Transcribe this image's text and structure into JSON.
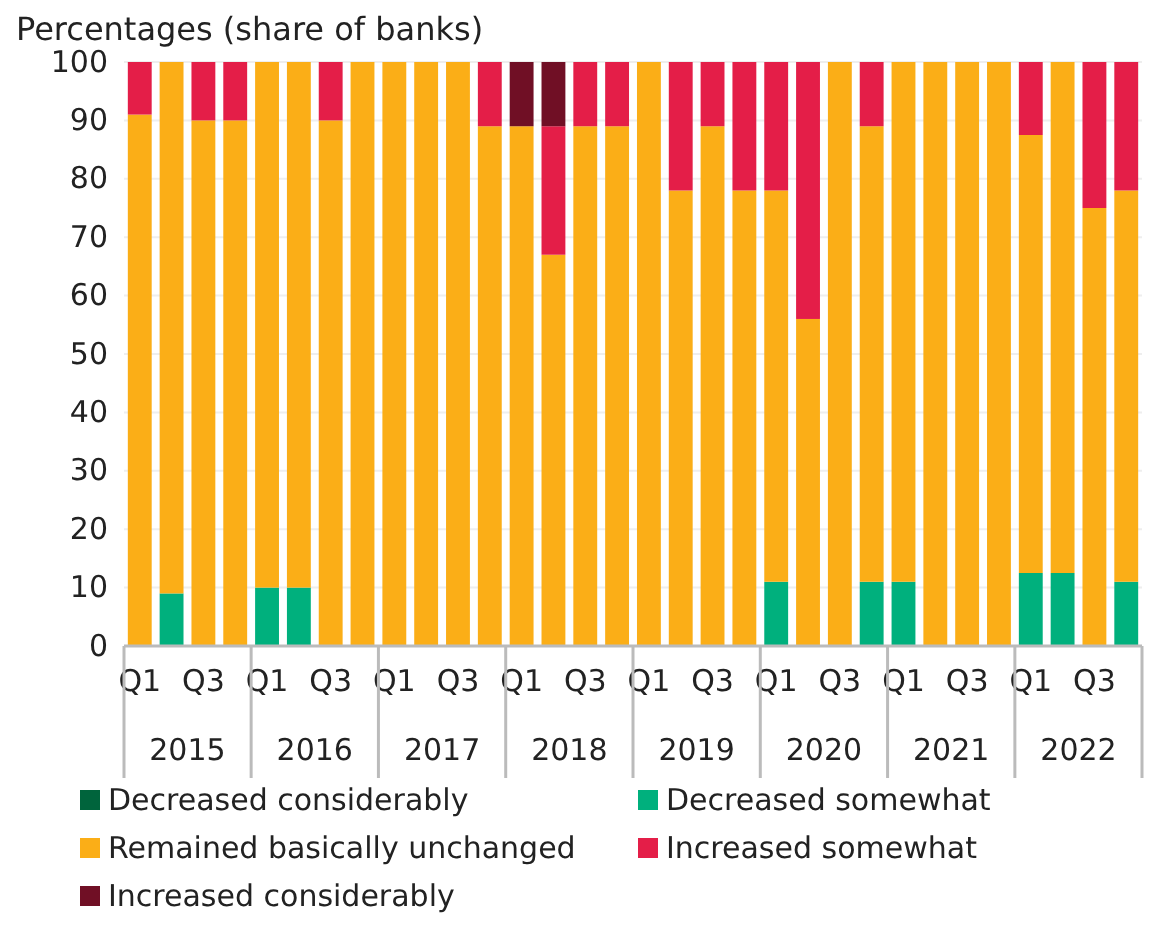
{
  "chart_data": {
    "type": "bar",
    "title": "Percentages (share of banks)",
    "stacked": true,
    "grid": "y",
    "legend": "bottom",
    "categories": [
      "Q1",
      null,
      "Q3",
      null,
      "Q1",
      null,
      "Q3",
      null,
      "Q1",
      null,
      "Q3",
      null,
      "Q1",
      null,
      "Q3",
      null,
      "Q1",
      null,
      "Q3",
      null,
      "Q1",
      null,
      "Q3",
      null,
      "Q1",
      null,
      "Q3",
      null,
      "Q1",
      null,
      "Q3",
      null
    ],
    "annotations": [
      "2015",
      "2016",
      "2017",
      "2018",
      "2019",
      "2020",
      "2021",
      "2022"
    ],
    "ylim": [
      0,
      100
    ],
    "yticks": [
      0,
      10,
      20,
      30,
      40,
      50,
      60,
      70,
      80,
      90,
      100
    ],
    "series": [
      {
        "name": "Decreased considerably",
        "color": "#00643c",
        "values": [
          0,
          0,
          0,
          0,
          0,
          0,
          0,
          0,
          0,
          0,
          0,
          0,
          0,
          0,
          0,
          0,
          0,
          0,
          0,
          0,
          0,
          0,
          0,
          0,
          0,
          0,
          0,
          0,
          0,
          0,
          0,
          0
        ]
      },
      {
        "name": "Decreased somewhat",
        "color": "#00b07d",
        "values": [
          0,
          9,
          0,
          0,
          10,
          10,
          0,
          0,
          0,
          0,
          0,
          0,
          0,
          0,
          0,
          0,
          0,
          0,
          0,
          0,
          11,
          0,
          0,
          11,
          11,
          0,
          0,
          0,
          12.5,
          12.5,
          0,
          11
        ]
      },
      {
        "name": "Remained basically unchanged",
        "color": "#fbae17",
        "values": [
          91,
          91,
          90,
          90,
          90,
          90,
          90,
          100,
          100,
          100,
          100,
          89,
          89,
          67,
          89,
          89,
          100,
          78,
          89,
          78,
          67,
          56,
          100,
          78,
          89,
          100,
          100,
          100,
          75,
          87.5,
          75,
          67
        ]
      },
      {
        "name": "Increased somewhat",
        "color": "#e41e48",
        "values": [
          9,
          0,
          10,
          10,
          0,
          0,
          10,
          0,
          0,
          0,
          0,
          11,
          0,
          22,
          11,
          11,
          0,
          22,
          11,
          22,
          22,
          44,
          0,
          11,
          0,
          0,
          0,
          0,
          12.5,
          0,
          25,
          22
        ]
      },
      {
        "name": "Increased considerably",
        "color": "#700f25",
        "values": [
          0,
          0,
          0,
          0,
          0,
          0,
          0,
          0,
          0,
          0,
          0,
          0,
          11,
          11,
          0,
          0,
          0,
          0,
          0,
          0,
          0,
          0,
          0,
          0,
          0,
          0,
          0,
          0,
          0,
          0,
          0,
          0
        ]
      }
    ]
  }
}
